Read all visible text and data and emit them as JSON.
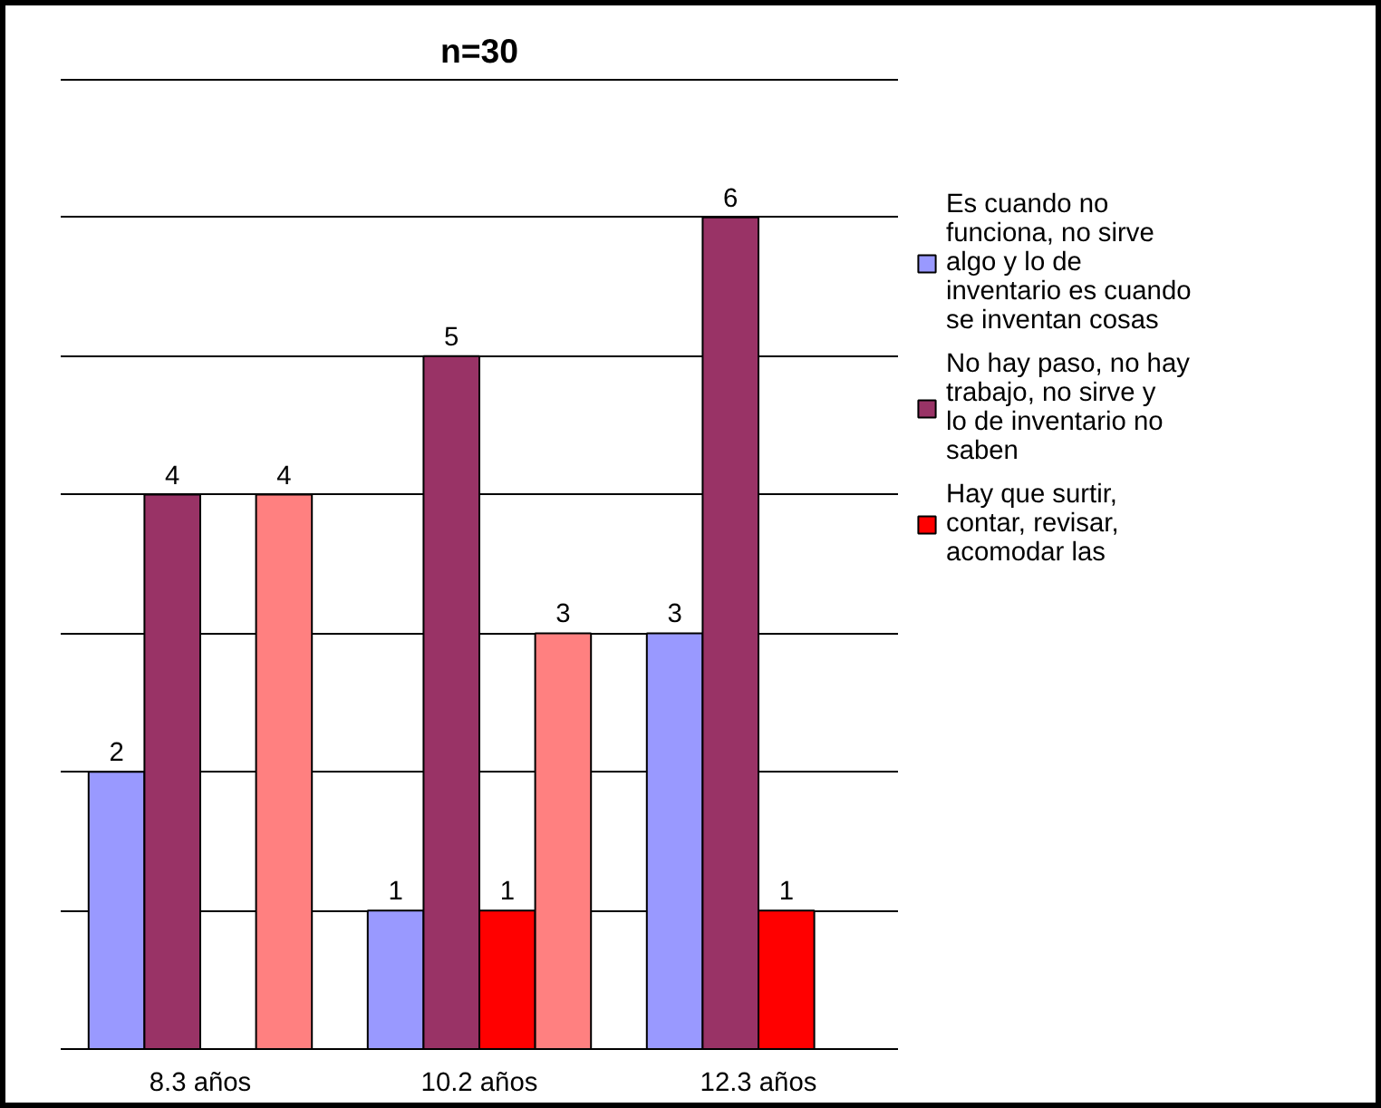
{
  "chart_data": {
    "type": "bar",
    "title": "n=30",
    "categories": [
      "8.3 años",
      "10.2 años",
      "12.3 años"
    ],
    "series": [
      {
        "name": "Es cuando no funciona, no sirve algo y lo de inventario es cuando se inventan cosas",
        "color": "#9999ff",
        "values": [
          2,
          1,
          3
        ]
      },
      {
        "name": "No hay paso, no hay trabajo, no sirve y lo de inventario no saben",
        "color": "#993366",
        "values": [
          4,
          5,
          6
        ]
      },
      {
        "name": "Hay que surtir, contar, revisar, acomodar las",
        "color": "#ff0000",
        "values": [
          null,
          1,
          1
        ]
      },
      {
        "color": "#ff8080",
        "values": [
          4,
          3,
          null
        ]
      }
    ],
    "ylim": [
      0,
      7
    ],
    "grid": "y",
    "legend": "right",
    "tick_labels": "x",
    "data_labels": true
  }
}
